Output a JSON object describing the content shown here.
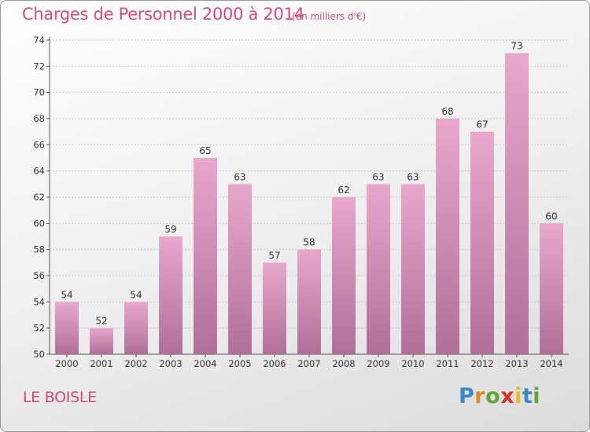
{
  "header": {
    "title": "Charges de Personnel 2000 à 2014",
    "subtitle": "(en milliers d'€)"
  },
  "footer": {
    "commune": "LE BOISLE",
    "logo": [
      "P",
      "r",
      "o",
      "x",
      "i",
      "t",
      "i"
    ]
  },
  "colors": {
    "bar_top": "#e8a8cc",
    "bar_bottom": "#b06f98",
    "accent": "#d44a7e"
  },
  "chart_data": {
    "type": "bar",
    "title": "Charges de Personnel 2000 à 2014",
    "subtitle": "(en milliers d'€)",
    "categories": [
      "2000",
      "2001",
      "2002",
      "2003",
      "2004",
      "2005",
      "2006",
      "2007",
      "2008",
      "2009",
      "2010",
      "2011",
      "2012",
      "2013",
      "2014"
    ],
    "values": [
      54,
      52,
      54,
      59,
      65,
      63,
      57,
      58,
      62,
      63,
      63,
      68,
      67,
      73,
      60
    ],
    "ylim": [
      50,
      74
    ],
    "yticks": [
      50,
      52,
      54,
      56,
      58,
      60,
      62,
      64,
      66,
      68,
      70,
      72,
      74
    ],
    "grid": true,
    "legend": "none"
  }
}
